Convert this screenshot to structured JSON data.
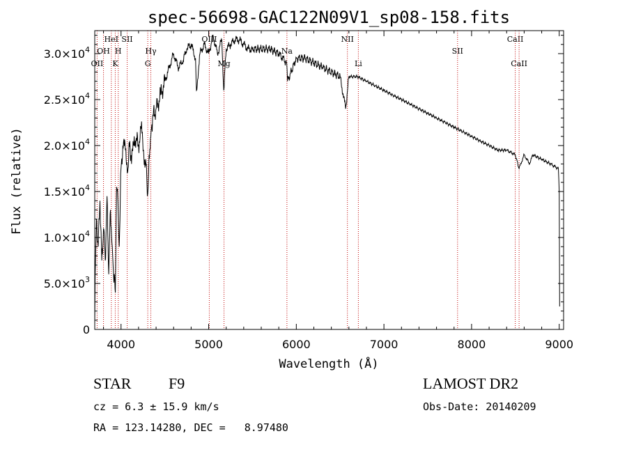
{
  "chart_data": {
    "type": "line",
    "title": "spec-56698-GAC122N09V1_sp08-158.fits",
    "xlabel": "Wavelength (Å)",
    "ylabel": "Flux (relative)",
    "xlim": [
      3700,
      9050
    ],
    "ylim": [
      0,
      32500
    ],
    "x_ticks": [
      4000,
      5000,
      6000,
      7000,
      8000,
      9000
    ],
    "x_tick_labels": [
      "4000",
      "5000",
      "6000",
      "7000",
      "8000",
      "9000"
    ],
    "y_ticks": [
      0,
      5000,
      10000,
      15000,
      20000,
      25000,
      30000
    ],
    "y_tick_labels": [
      {
        "mant": "0",
        "exp": ""
      },
      {
        "mant": "5.0×10",
        "exp": "3"
      },
      {
        "mant": "1.0×10",
        "exp": "4"
      },
      {
        "mant": "1.5×10",
        "exp": "4"
      },
      {
        "mant": "2.0×10",
        "exp": "4"
      },
      {
        "mant": "2.5×10",
        "exp": "4"
      },
      {
        "mant": "3.0×10",
        "exp": "4"
      }
    ],
    "series": [
      {
        "name": "flux",
        "x": [
          3700,
          3705,
          3720,
          3740,
          3760,
          3780,
          3800,
          3820,
          3840,
          3860,
          3880,
          3900,
          3915,
          3935,
          3950,
          3965,
          3980,
          4000,
          4020,
          4050,
          4080,
          4100,
          4120,
          4150,
          4180,
          4200,
          4230,
          4260,
          4290,
          4300,
          4310,
          4320,
          4340,
          4360,
          4400,
          4450,
          4500,
          4550,
          4600,
          4650,
          4700,
          4750,
          4800,
          4850,
          4861,
          4900,
          4950,
          5000,
          5050,
          5100,
          5150,
          5172,
          5200,
          5250,
          5300,
          5350,
          5400,
          5450,
          5500,
          5600,
          5700,
          5800,
          5890,
          5900,
          6000,
          6100,
          6200,
          6300,
          6400,
          6500,
          6563,
          6600,
          6700,
          6800,
          6900,
          7000,
          7100,
          7200,
          7300,
          7400,
          7500,
          7600,
          7700,
          7800,
          7900,
          8000,
          8100,
          8200,
          8300,
          8400,
          8498,
          8542,
          8600,
          8662,
          8700,
          8800,
          8900,
          8990,
          9000,
          9005
        ],
        "y": [
          500,
          6000,
          12000,
          9000,
          14000,
          7500,
          11000,
          7500,
          14500,
          6000,
          13000,
          9000,
          6000,
          4000,
          15500,
          14000,
          9000,
          17500,
          20000,
          19500,
          17500,
          20500,
          18000,
          21000,
          20500,
          20000,
          22000,
          19000,
          18000,
          14500,
          15500,
          19000,
          21000,
          23000,
          24000,
          25500,
          27000,
          28500,
          30000,
          28500,
          29000,
          30500,
          31000,
          29500,
          26000,
          30000,
          31000,
          30000,
          32000,
          30000,
          31500,
          26000,
          30500,
          31000,
          31500,
          31500,
          31000,
          30500,
          30500,
          30500,
          30500,
          30000,
          29000,
          27000,
          29500,
          29500,
          29000,
          28500,
          28000,
          27500,
          24000,
          27500,
          27500,
          27000,
          26500,
          26000,
          25500,
          25000,
          24500,
          24000,
          23500,
          23000,
          22500,
          22000,
          21500,
          21000,
          20500,
          20000,
          19500,
          19500,
          19000,
          17500,
          19000,
          18000,
          19000,
          18500,
          18000,
          17500,
          15000,
          2500
        ]
      }
    ],
    "spectral_lines": [
      {
        "label": "OII",
        "wave": 3727,
        "row": 2
      },
      {
        "label": "OH",
        "wave": 3800,
        "row": 1
      },
      {
        "label": "HeI",
        "wave": 3889,
        "row": 0
      },
      {
        "label": "H",
        "wave": 3968,
        "row": 1
      },
      {
        "label": "K",
        "wave": 3934,
        "row": 2
      },
      {
        "label": "SII",
        "wave": 4070,
        "row": 0
      },
      {
        "label": "Hγ",
        "wave": 4340,
        "row": 1
      },
      {
        "label": "G",
        "wave": 4305,
        "row": 2
      },
      {
        "label": "OIII",
        "wave": 5007,
        "row": 0
      },
      {
        "label": "Mg",
        "wave": 5175,
        "row": 2
      },
      {
        "label": "Na",
        "wave": 5893,
        "row": 1
      },
      {
        "label": "NII",
        "wave": 6583,
        "row": 0
      },
      {
        "label": "Li",
        "wave": 6708,
        "row": 2
      },
      {
        "label": "SII",
        "wave": 7840,
        "row": 1
      },
      {
        "label": "CaII",
        "wave": 8498,
        "row": 0
      },
      {
        "label": "CaII",
        "wave": 8542,
        "row": 2
      }
    ]
  },
  "info": {
    "class": "STAR",
    "subclass": "F9",
    "survey": "LAMOST DR2",
    "cz": "cz = 6.3 ± 15.9 km/s",
    "obs_date": "Obs-Date: 20140209",
    "coords": "RA = 123.14280, DEC =   8.97480"
  }
}
